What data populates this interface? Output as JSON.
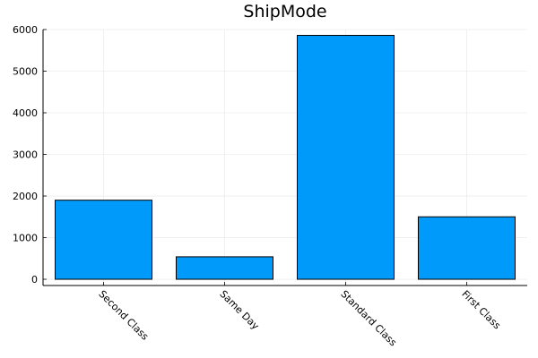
{
  "chart_data": {
    "type": "bar",
    "title": "ShipMode",
    "xlabel": "",
    "ylabel": "",
    "categories": [
      "Second Class",
      "Same Day",
      "Standard Class",
      "First Class"
    ],
    "values": [
      1900,
      540,
      5860,
      1500
    ],
    "ylim": [
      -150,
      6000
    ],
    "yticks": [
      0,
      1000,
      2000,
      3000,
      4000,
      5000,
      6000
    ],
    "grid": true,
    "legend": "none",
    "bar_color": "#009AFA",
    "bar_edge_color": "#000000"
  }
}
